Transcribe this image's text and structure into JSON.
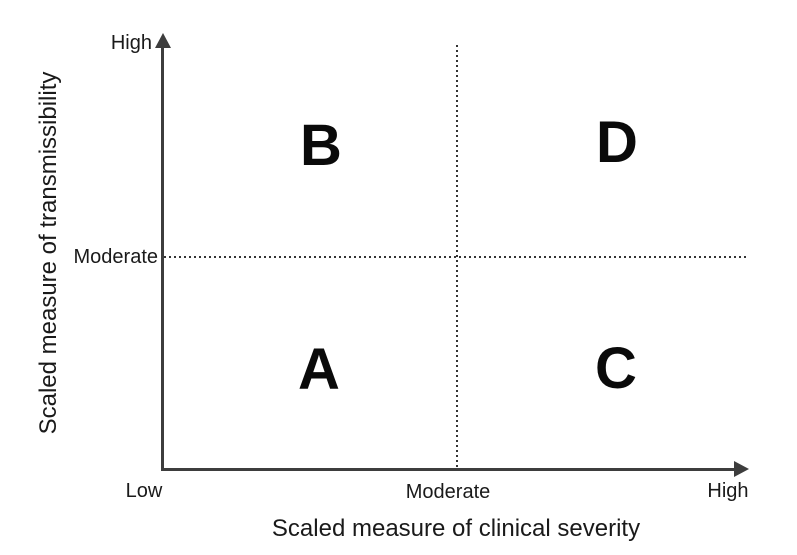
{
  "figure": {
    "y_axis": {
      "title": "Scaled measure of transmissibility",
      "tick_high": "High",
      "tick_moderate": "Moderate"
    },
    "x_axis": {
      "title": "Scaled measure of clinical severity",
      "tick_low": "Low",
      "tick_moderate": "Moderate",
      "tick_high": "High"
    },
    "quadrants": {
      "top_left": "B",
      "top_right": "D",
      "bottom_left": "A",
      "bottom_right": "C"
    }
  },
  "colors": {
    "background": "#ffffff",
    "axis_line": "#3d3d3d",
    "divider_dots": "#333333",
    "text": "#1a1a1a",
    "quadrant_letters": "#0a0a0a"
  },
  "chart_data": {
    "type": "quadrant",
    "title": "",
    "xlabel": "Scaled measure of clinical severity",
    "ylabel": "Scaled measure of transmissibility",
    "x_tick_labels": [
      "Low",
      "Moderate",
      "High"
    ],
    "y_tick_labels": [
      "Moderate",
      "High"
    ],
    "dividers": {
      "vertical_at_x": "Moderate",
      "horizontal_at_y": "Moderate",
      "style": "dotted"
    },
    "quadrants": [
      {
        "label": "A",
        "position": "bottom-left",
        "severity": "below moderate",
        "transmissibility": "below moderate"
      },
      {
        "label": "B",
        "position": "top-left",
        "severity": "below moderate",
        "transmissibility": "above moderate"
      },
      {
        "label": "C",
        "position": "bottom-right",
        "severity": "above moderate",
        "transmissibility": "below moderate"
      },
      {
        "label": "D",
        "position": "top-right",
        "severity": "above moderate",
        "transmissibility": "above moderate"
      }
    ],
    "grid": false,
    "legend": false
  }
}
